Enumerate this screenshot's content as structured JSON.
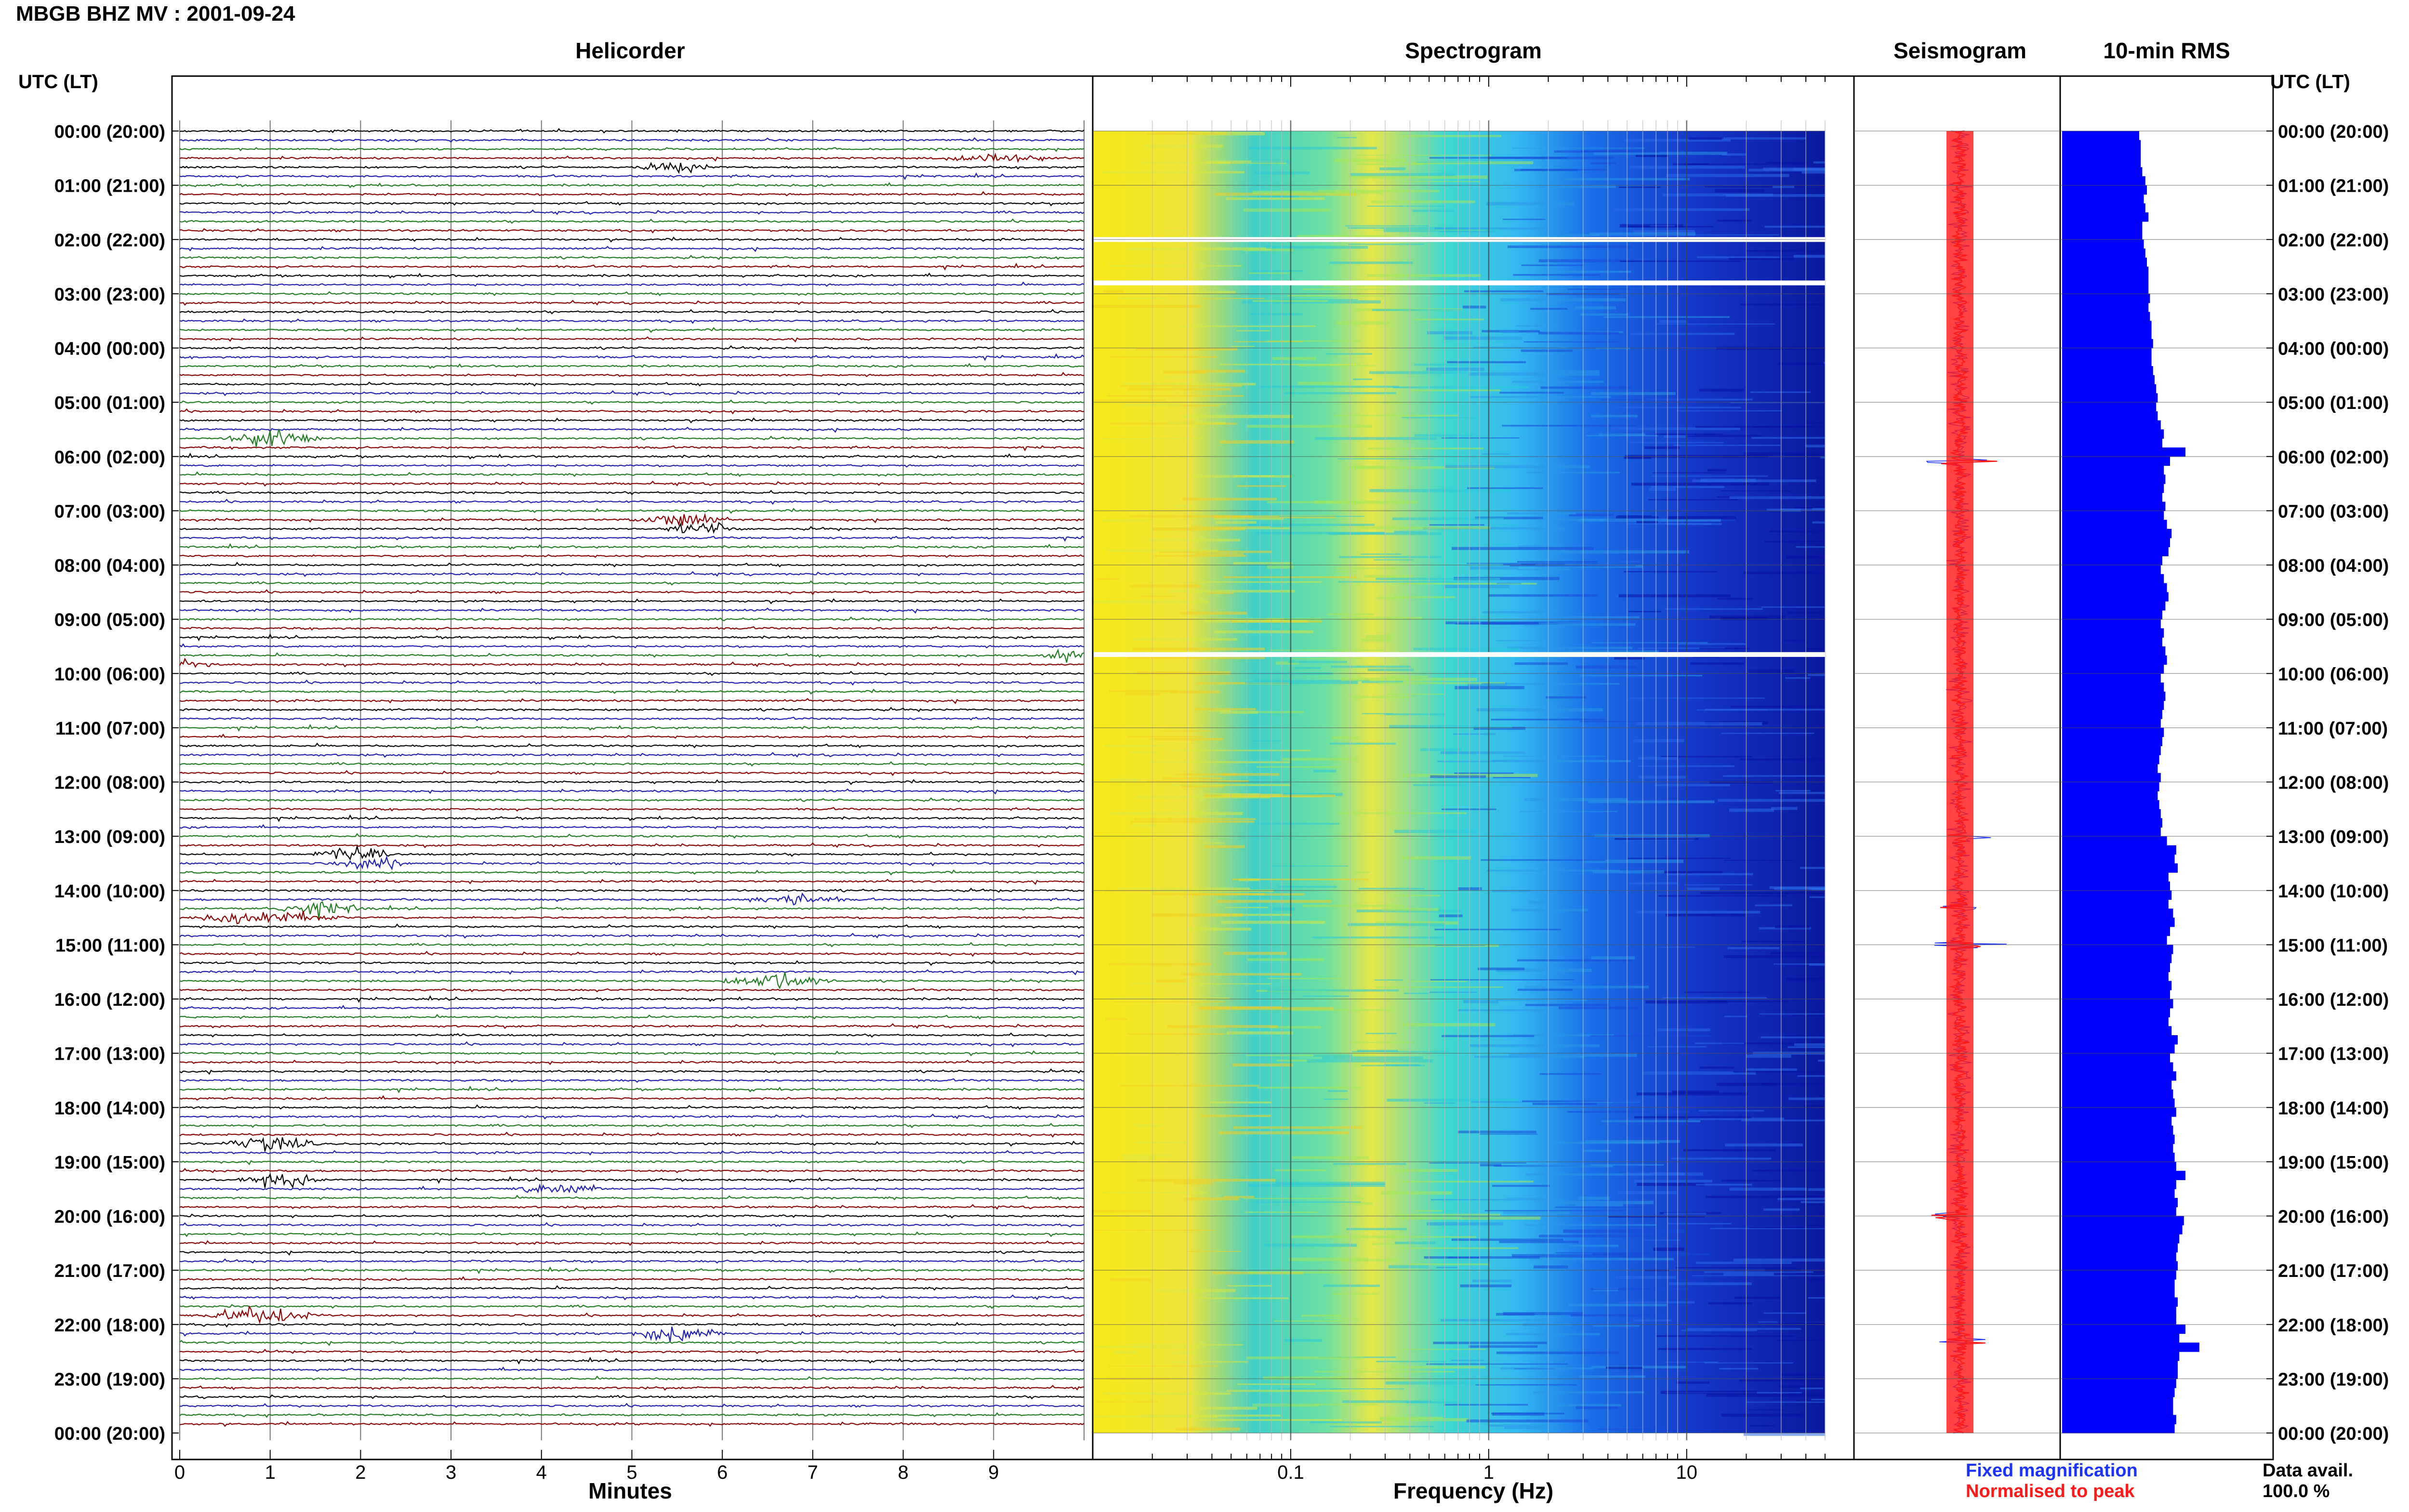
{
  "title": "MBGB BHZ MV : 2001-09-24",
  "panels": {
    "helicorder": "Helicorder",
    "spectrogram": "Spectrogram",
    "seismogram": "Seismogram",
    "rms": "10-min RMS"
  },
  "time_axis_label": "UTC (LT)",
  "time_ticks": [
    "00:00 (20:00)",
    "01:00 (21:00)",
    "02:00 (22:00)",
    "03:00 (23:00)",
    "04:00 (00:00)",
    "05:00 (01:00)",
    "06:00 (02:00)",
    "07:00 (03:00)",
    "08:00 (04:00)",
    "09:00 (05:00)",
    "10:00 (06:00)",
    "11:00 (07:00)",
    "12:00 (08:00)",
    "13:00 (09:00)",
    "14:00 (10:00)",
    "15:00 (11:00)",
    "16:00 (12:00)",
    "17:00 (13:00)",
    "18:00 (14:00)",
    "19:00 (15:00)",
    "20:00 (16:00)",
    "21:00 (17:00)",
    "22:00 (18:00)",
    "23:00 (19:00)",
    "00:00 (20:00)"
  ],
  "helicorder_axis": {
    "title": "Minutes",
    "ticks": [
      "0",
      "1",
      "2",
      "3",
      "4",
      "5",
      "6",
      "7",
      "8",
      "9"
    ]
  },
  "frequency_axis": {
    "title": "Frequency (Hz)",
    "ticks": [
      "0.1",
      "1",
      "10"
    ],
    "scale": "log"
  },
  "legend": {
    "fixed": "Fixed magnification",
    "normalised": "Normalised to peak"
  },
  "data_availability": {
    "label": "Data avail.",
    "value": "100.0 %"
  },
  "colors": {
    "trace_cycle": [
      "#000000",
      "#1f1fb4",
      "#1f7d1f",
      "#8b0000"
    ],
    "rms_bar": "#0000ff",
    "fixed": "#1a33ff",
    "normalised": "#ff1a1a"
  },
  "chart_data": [
    {
      "type": "line",
      "panel": "helicorder",
      "description_of_rows": "144 ten-minute traces, colours cycle black/blue/green/red",
      "x_unit": "minutes",
      "xlim": [
        0,
        10
      ],
      "rows": 144,
      "events": [
        {
          "row": 3,
          "minute": 9.0,
          "amp": 0.8,
          "dur": 0.7
        },
        {
          "row": 4,
          "minute": 5.5,
          "amp": 0.7,
          "dur": 0.5
        },
        {
          "row": 34,
          "minute": 1.0,
          "amp": 1.2,
          "dur": 0.6
        },
        {
          "row": 43,
          "minute": 5.5,
          "amp": 1.0,
          "dur": 0.6
        },
        {
          "row": 44,
          "minute": 5.8,
          "amp": 0.9,
          "dur": 0.5
        },
        {
          "row": 58,
          "minute": 9.8,
          "amp": 0.8,
          "dur": 0.3
        },
        {
          "row": 59,
          "minute": 0.1,
          "amp": 0.7,
          "dur": 0.3
        },
        {
          "row": 80,
          "minute": 1.9,
          "amp": 1.0,
          "dur": 0.5
        },
        {
          "row": 81,
          "minute": 2.1,
          "amp": 0.9,
          "dur": 0.5
        },
        {
          "row": 85,
          "minute": 6.8,
          "amp": 0.8,
          "dur": 0.6
        },
        {
          "row": 86,
          "minute": 1.5,
          "amp": 0.9,
          "dur": 0.7
        },
        {
          "row": 87,
          "minute": 1.0,
          "amp": 1.0,
          "dur": 0.9
        },
        {
          "row": 94,
          "minute": 6.6,
          "amp": 1.2,
          "dur": 0.7
        },
        {
          "row": 112,
          "minute": 1.0,
          "amp": 1.0,
          "dur": 0.6
        },
        {
          "row": 116,
          "minute": 1.1,
          "amp": 1.1,
          "dur": 0.5
        },
        {
          "row": 117,
          "minute": 4.2,
          "amp": 0.8,
          "dur": 0.6
        },
        {
          "row": 131,
          "minute": 0.9,
          "amp": 1.3,
          "dur": 0.7
        },
        {
          "row": 133,
          "minute": 5.5,
          "amp": 1.1,
          "dur": 0.6
        }
      ]
    },
    {
      "type": "heatmap",
      "panel": "spectrogram",
      "x_unit": "Hz",
      "xscale": "log",
      "xlim": [
        0.01,
        50
      ],
      "note": "high energy (yellow) below ~1 Hz, blue above ~3 Hz; white gaps",
      "gaps_hours": [
        2.0,
        2.8,
        9.65
      ]
    },
    {
      "type": "line",
      "panel": "seismogram",
      "series": [
        {
          "name": "Fixed magnification",
          "color": "#1a33ff"
        },
        {
          "name": "Normalised to peak",
          "color": "#ff1a1a"
        }
      ],
      "spikes_hours": [
        6.1,
        13.0,
        14.3,
        15.0,
        20.0,
        22.3
      ]
    },
    {
      "type": "bar",
      "panel": "rms",
      "orientation": "horizontal",
      "bins": 144,
      "bin_minutes": 10,
      "values": [
        0.5,
        0.51,
        0.51,
        0.51,
        0.52,
        0.54,
        0.55,
        0.53,
        0.54,
        0.56,
        0.52,
        0.52,
        0.53,
        0.54,
        0.55,
        0.56,
        0.56,
        0.56,
        0.57,
        0.56,
        0.57,
        0.58,
        0.58,
        0.59,
        0.58,
        0.58,
        0.59,
        0.6,
        0.61,
        0.62,
        0.61,
        0.62,
        0.64,
        0.66,
        0.65,
        0.8,
        0.7,
        0.66,
        0.67,
        0.66,
        0.65,
        0.67,
        0.66,
        0.68,
        0.71,
        0.7,
        0.69,
        0.65,
        0.64,
        0.66,
        0.68,
        0.69,
        0.67,
        0.65,
        0.64,
        0.66,
        0.65,
        0.67,
        0.68,
        0.66,
        0.64,
        0.66,
        0.67,
        0.66,
        0.65,
        0.64,
        0.66,
        0.65,
        0.64,
        0.63,
        0.62,
        0.64,
        0.63,
        0.62,
        0.63,
        0.64,
        0.65,
        0.64,
        0.68,
        0.74,
        0.73,
        0.75,
        0.69,
        0.7,
        0.71,
        0.69,
        0.72,
        0.73,
        0.7,
        0.68,
        0.72,
        0.71,
        0.7,
        0.69,
        0.71,
        0.7,
        0.72,
        0.7,
        0.69,
        0.71,
        0.75,
        0.73,
        0.7,
        0.72,
        0.74,
        0.71,
        0.72,
        0.73,
        0.74,
        0.71,
        0.72,
        0.73,
        0.72,
        0.73,
        0.74,
        0.8,
        0.74,
        0.73,
        0.75,
        0.74,
        0.79,
        0.78,
        0.76,
        0.75,
        0.74,
        0.75,
        0.74,
        0.73,
        0.73,
        0.75,
        0.74,
        0.74,
        0.8,
        0.76,
        0.89,
        0.76,
        0.75,
        0.75,
        0.74,
        0.73,
        0.72,
        0.72,
        0.74,
        0.73
      ]
    }
  ]
}
